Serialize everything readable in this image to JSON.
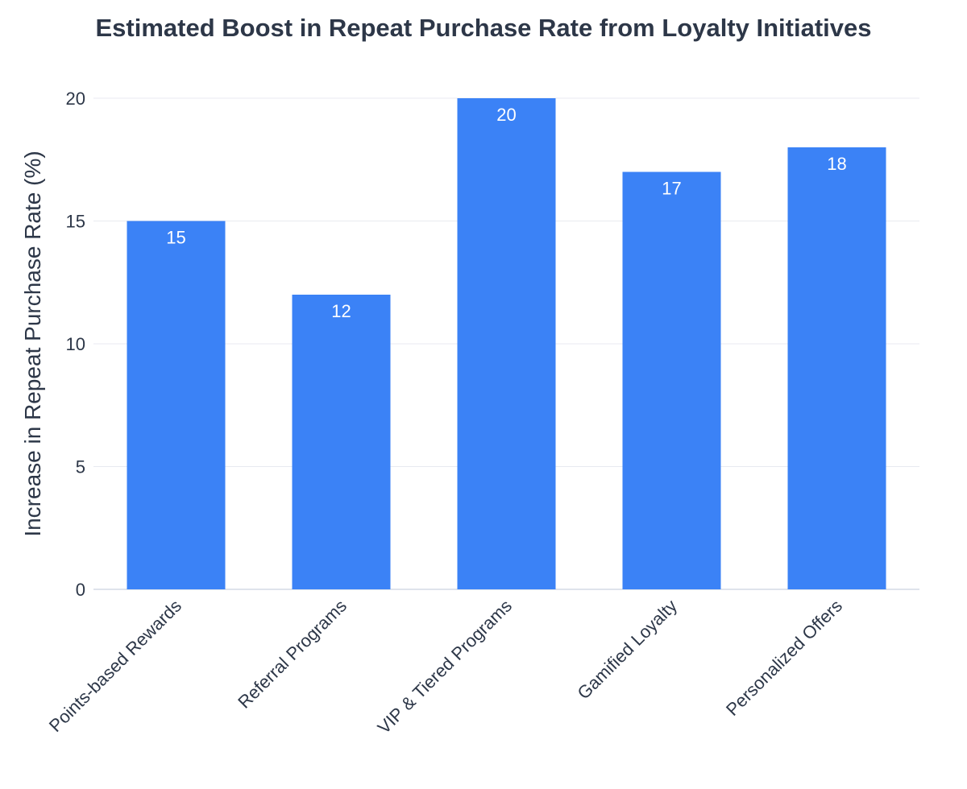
{
  "chart_data": {
    "type": "bar",
    "title": "Estimated Boost in Repeat Purchase Rate from Loyalty Initiatives",
    "xlabel": "",
    "ylabel": "Increase in Repeat Purchase Rate (%)",
    "categories": [
      "Points-based Rewards",
      "Referral Programs",
      "VIP & Tiered Programs",
      "Gamified Loyalty",
      "Personalized Offers"
    ],
    "values": [
      15,
      12,
      20,
      17,
      18
    ],
    "data_labels": [
      "15",
      "12",
      "20",
      "17",
      "18"
    ],
    "ylim": [
      0,
      20
    ],
    "yticks": [
      0,
      5,
      10,
      15,
      20
    ],
    "ytick_labels": [
      "0",
      "5",
      "10",
      "15",
      "20"
    ],
    "grid": true,
    "legend": "none",
    "colors": {
      "bar": "#3b82f6",
      "text": "#2d3748",
      "grid": "#e8eaf0",
      "label": "#ffffff"
    }
  }
}
